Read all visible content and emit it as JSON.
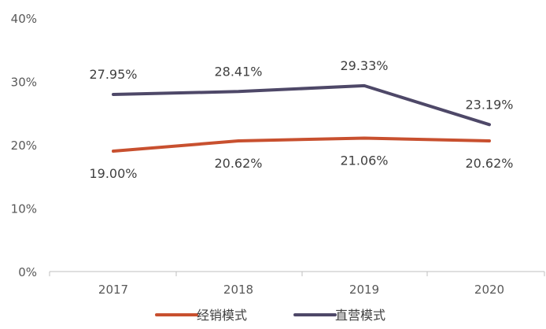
{
  "chart_data": {
    "type": "line",
    "title": "",
    "xlabel": "",
    "ylabel": "",
    "categories": [
      "2017",
      "2018",
      "2019",
      "2020"
    ],
    "ylim": [
      0,
      40
    ],
    "yticks": [
      0,
      10,
      20,
      30,
      40
    ],
    "ytick_labels": [
      "0%",
      "10%",
      "20%",
      "30%",
      "40%"
    ],
    "grid": false,
    "legend_position": "bottom",
    "series": [
      {
        "name": "经销模式",
        "color": "#c8502f",
        "values": [
          19.0,
          20.62,
          21.06,
          20.62
        ],
        "labels": [
          "19.00%",
          "20.62%",
          "21.06%",
          "20.62%"
        ],
        "label_position": "below"
      },
      {
        "name": "直营模式",
        "color": "#4e4868",
        "values": [
          27.95,
          28.41,
          29.33,
          23.19
        ],
        "labels": [
          "27.95%",
          "28.41%",
          "29.33%",
          "23.19%"
        ],
        "label_position": "above"
      }
    ]
  }
}
